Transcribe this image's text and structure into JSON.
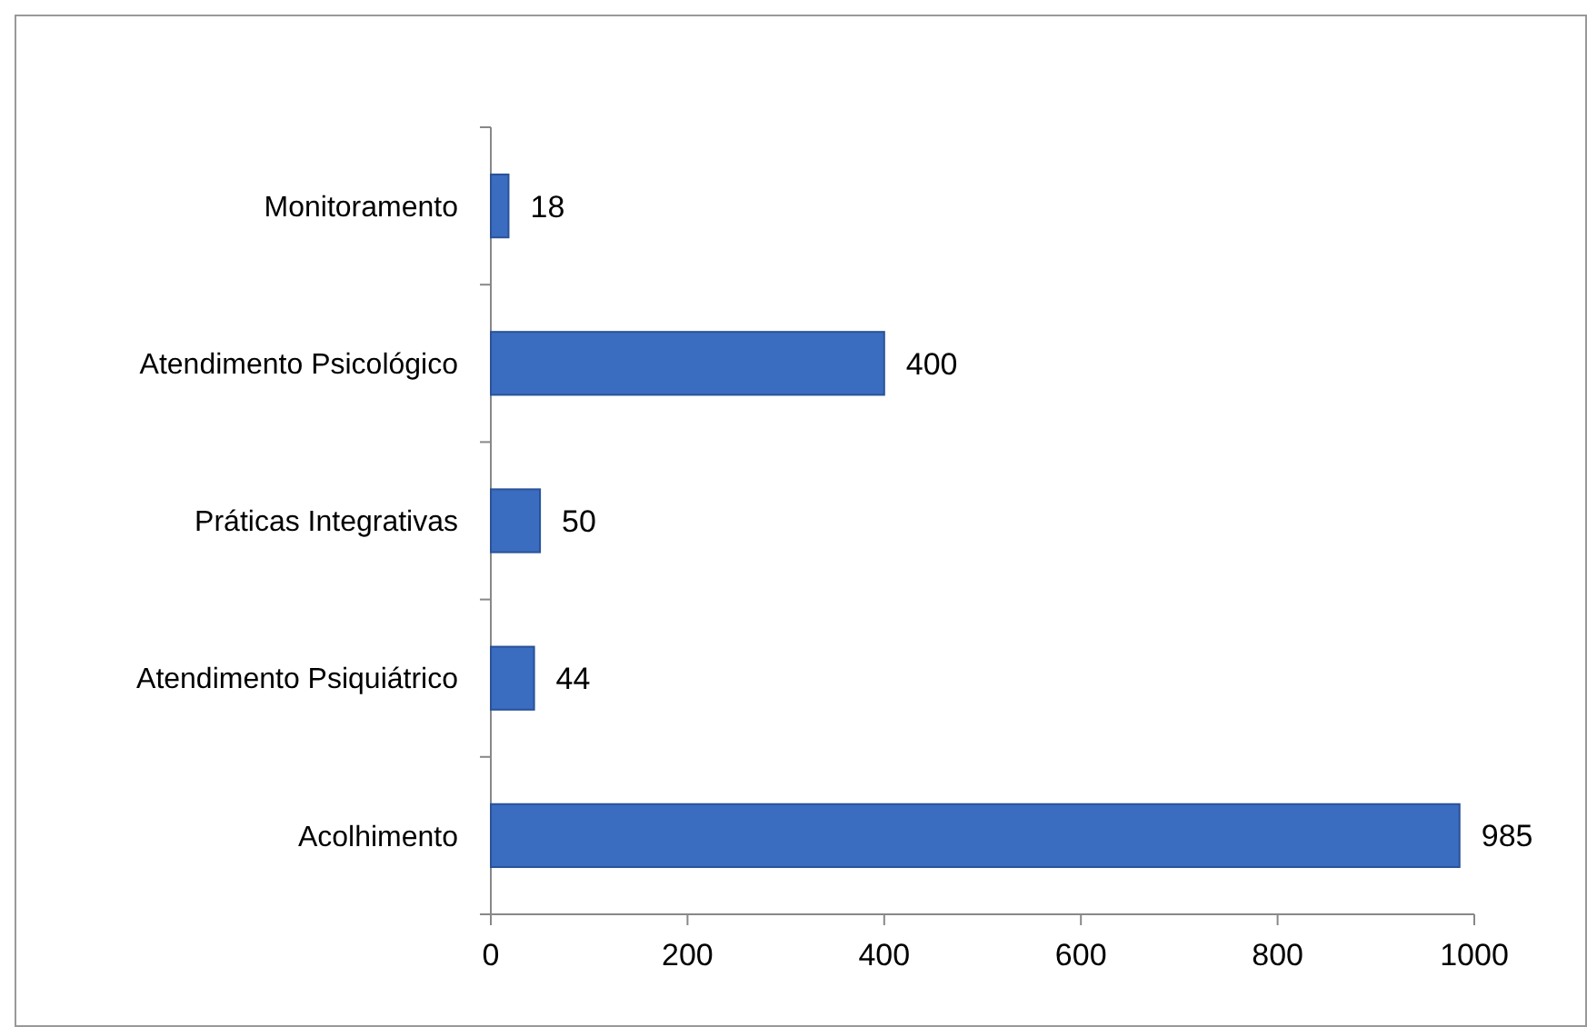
{
  "chart_data": {
    "type": "bar",
    "orientation": "horizontal",
    "categories": [
      "Monitoramento",
      "Atendimento Psicológico",
      "Práticas Integrativas",
      "Atendimento Psiquiátrico",
      "Acolhimento"
    ],
    "values": [
      18,
      400,
      50,
      44,
      985
    ],
    "color": "#3a6cc0",
    "xlim": [
      0,
      1000
    ],
    "xticks": [
      0,
      200,
      400,
      600,
      800,
      1000
    ],
    "data_labels": true,
    "grid": false
  }
}
